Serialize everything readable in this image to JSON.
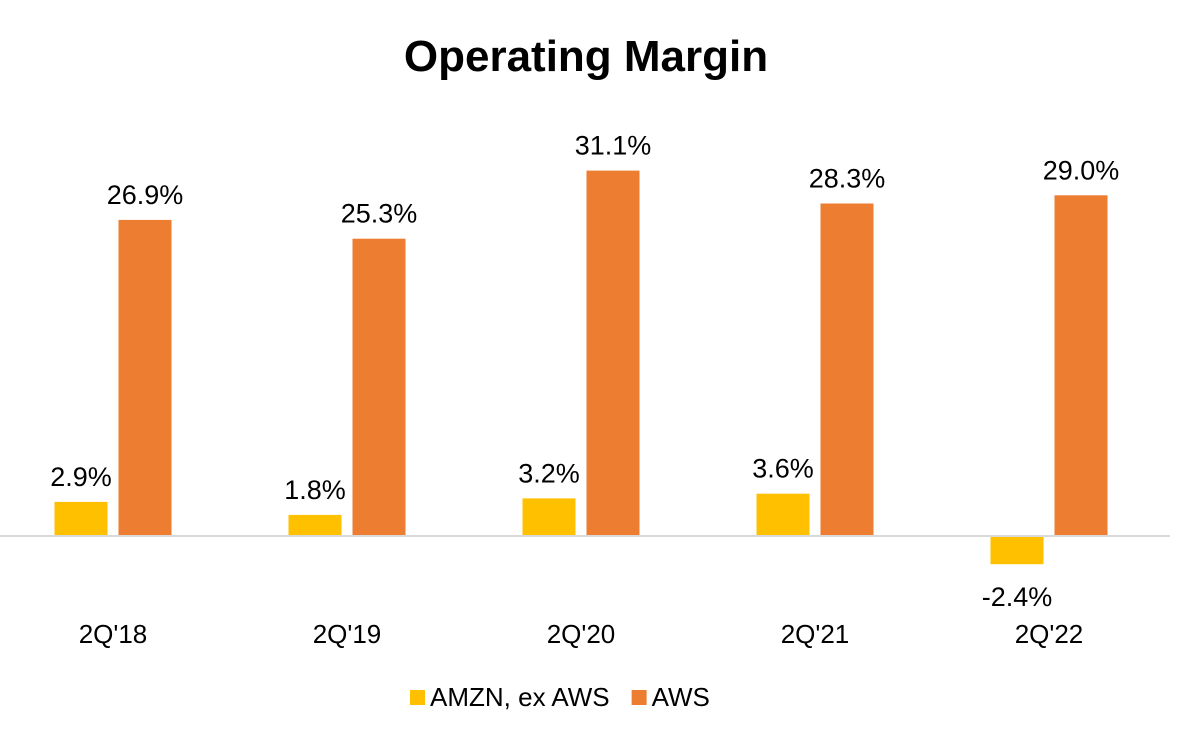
{
  "chart_data": {
    "type": "bar",
    "title": "Operating Margin",
    "categories": [
      "2Q'18",
      "2Q'19",
      "2Q'20",
      "2Q'21",
      "2Q'22"
    ],
    "series": [
      {
        "name": "AMZN, ex AWS",
        "color": "#FFC000",
        "values": [
          2.9,
          1.8,
          3.2,
          3.6,
          -2.4
        ],
        "labels": [
          "2.9%",
          "1.8%",
          "3.2%",
          "3.6%",
          "-2.4%"
        ]
      },
      {
        "name": "AWS",
        "color": "#ED7D31",
        "values": [
          26.9,
          25.3,
          31.1,
          28.3,
          29.0
        ],
        "labels": [
          "26.9%",
          "25.3%",
          "31.1%",
          "28.3%",
          "29.0%"
        ]
      }
    ],
    "xlabel": "",
    "ylabel": "",
    "ylim": [
      -5,
      35
    ],
    "grid": false,
    "legend": "bottom",
    "axis_color": "#D9D9D9"
  }
}
